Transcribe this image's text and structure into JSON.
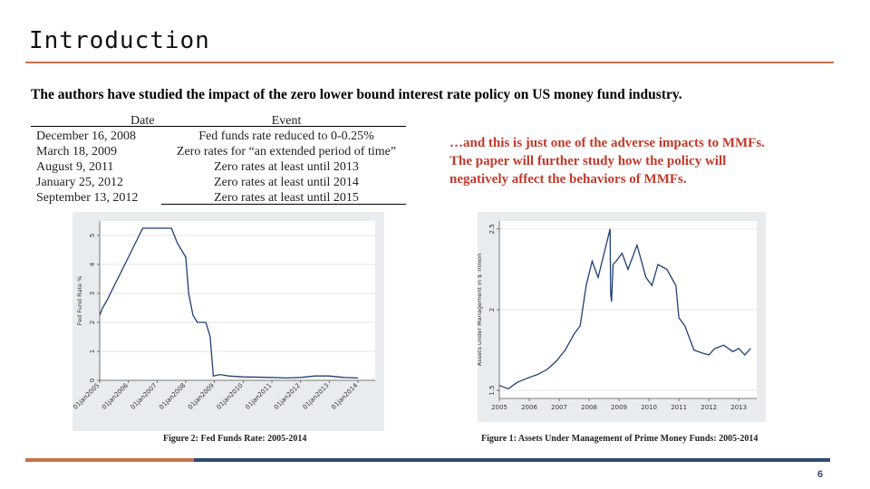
{
  "slide": {
    "title": "Introduction",
    "intro": "The authors have studied the impact of the zero lower bound interest rate policy on US money fund industry.",
    "note_lines": [
      "…and this is just one of the adverse impacts to MMFs.",
      "The paper will further study how the policy will",
      "negatively affect the behaviors of MMFs."
    ],
    "page_number": "6"
  },
  "events_table": {
    "headers": [
      "Date",
      "Event"
    ],
    "rows": [
      [
        "December 16, 2008",
        "Fed funds rate reduced to 0-0.25%"
      ],
      [
        "March 18, 2009",
        "Zero rates for “an extended period of time”"
      ],
      [
        "August 9, 2011",
        "Zero rates at least until 2013"
      ],
      [
        "January 25, 2012",
        "Zero rates at least until 2014"
      ],
      [
        "September 13, 2012",
        "Zero rates at least until 2015"
      ]
    ]
  },
  "chart_data": [
    {
      "type": "line",
      "title": "Figure 2: Fed Funds Rate: 2005-2014",
      "ylabel": "Fed Fund Rate %",
      "xlabel": "",
      "ylim": [
        0,
        5.5
      ],
      "yticks": [
        0,
        1,
        2,
        3,
        4,
        5
      ],
      "xticks": [
        "01jan2005",
        "01jan2006",
        "01jan2007",
        "01jan2008",
        "01jan2009",
        "01jan2010",
        "01jan2011",
        "01jan2012",
        "01jan2013",
        "01jan2014"
      ],
      "series": [
        {
          "x": [
            2005.0,
            2005.1,
            2005.25,
            2005.5,
            2005.75,
            2006.0,
            2006.25,
            2006.5,
            2007.0,
            2007.5,
            2007.7,
            2007.85,
            2008.0,
            2008.1,
            2008.25,
            2008.4,
            2008.7,
            2008.85,
            2008.96,
            2009.2,
            2009.5,
            2010.0,
            2011.0,
            2011.5,
            2012.0,
            2012.5,
            2013.0,
            2013.5,
            2014.0
          ],
          "values": [
            2.25,
            2.5,
            2.75,
            3.25,
            3.75,
            4.25,
            4.75,
            5.25,
            5.25,
            5.25,
            4.75,
            4.5,
            4.25,
            3.0,
            2.25,
            2.0,
            2.0,
            1.5,
            0.15,
            0.2,
            0.15,
            0.12,
            0.1,
            0.08,
            0.1,
            0.15,
            0.15,
            0.1,
            0.08
          ]
        }
      ]
    },
    {
      "type": "line",
      "title": "Figure 1: Assets Under Management of Prime Money Funds: 2005-2014",
      "ylabel": "Assets under Management in $ Trillion",
      "xlabel": "",
      "ylim": [
        1.45,
        2.55
      ],
      "yticks": [
        1.5,
        2,
        2.5
      ],
      "xticks": [
        "2005",
        "2006",
        "2007",
        "2008",
        "2009",
        "2010",
        "2011",
        "2012",
        "2013"
      ],
      "series": [
        {
          "x": [
            2005.0,
            2005.3,
            2005.6,
            2006.0,
            2006.3,
            2006.6,
            2006.9,
            2007.2,
            2007.5,
            2007.7,
            2007.9,
            2008.1,
            2008.3,
            2008.5,
            2008.7,
            2008.72,
            2008.75,
            2008.8,
            2008.9,
            2009.1,
            2009.3,
            2009.6,
            2009.9,
            2010.1,
            2010.3,
            2010.6,
            2010.9,
            2011.0,
            2011.2,
            2011.5,
            2011.8,
            2012.0,
            2012.2,
            2012.5,
            2012.8,
            2013.0,
            2013.2,
            2013.4
          ],
          "values": [
            1.53,
            1.51,
            1.55,
            1.58,
            1.6,
            1.63,
            1.68,
            1.75,
            1.85,
            1.9,
            2.15,
            2.3,
            2.2,
            2.35,
            2.5,
            2.1,
            2.05,
            2.28,
            2.3,
            2.35,
            2.25,
            2.4,
            2.2,
            2.15,
            2.28,
            2.25,
            2.15,
            1.95,
            1.9,
            1.75,
            1.73,
            1.72,
            1.76,
            1.78,
            1.74,
            1.76,
            1.72,
            1.76
          ]
        }
      ]
    }
  ]
}
